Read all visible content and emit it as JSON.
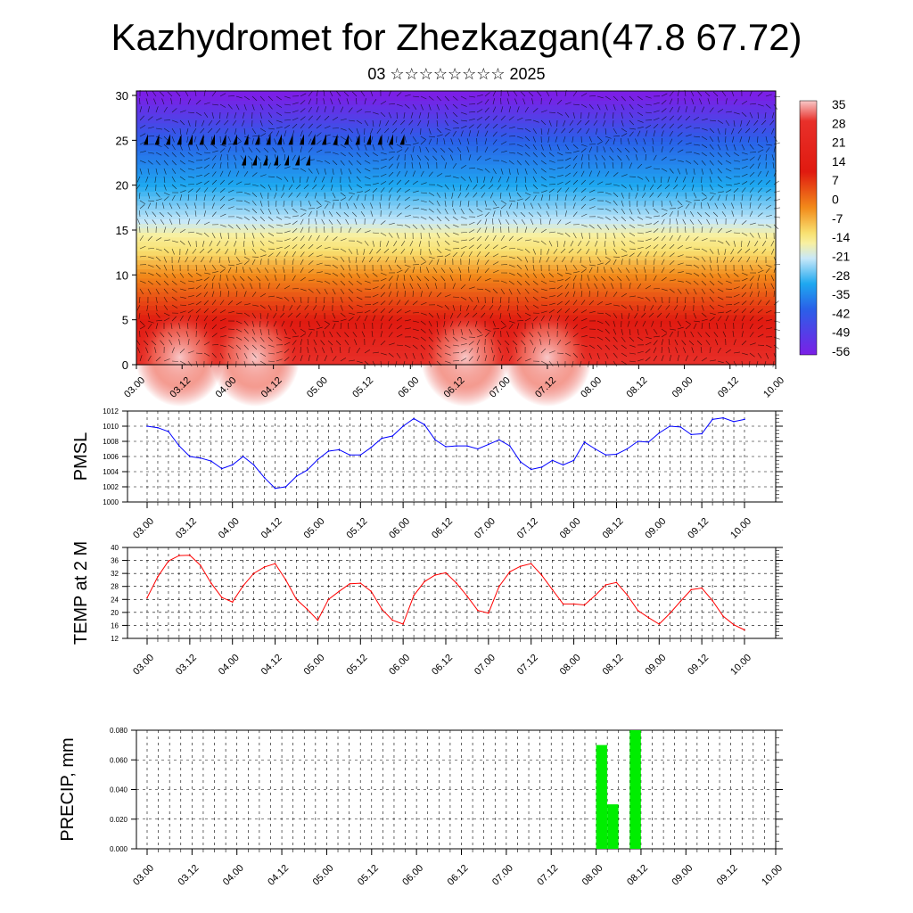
{
  "title": "Kazhydromet for Zhezkazgan(47.8 67.72)",
  "subtitle": "03 ☆☆☆☆☆☆☆☆ 2025",
  "time_ticks": [
    "03.00",
    "03.12",
    "04.00",
    "04.12",
    "05.00",
    "05.12",
    "06.00",
    "06.12",
    "07.00",
    "07.12",
    "08.00",
    "08.12",
    "09.00",
    "09.12",
    "10.00"
  ],
  "chart_data": [
    {
      "type": "heatmap",
      "name": "vertical-section",
      "y_ticks": [
        0,
        5,
        10,
        15,
        20,
        25,
        30
      ],
      "ylim": [
        0,
        30.5
      ],
      "colorbar_labels": [
        "35",
        "28",
        "21",
        "14",
        "7",
        "0",
        "-7",
        "-14",
        "-21",
        "-28",
        "-35",
        "-42",
        "-49",
        "-56"
      ],
      "colors": {
        "cold": "#7b1fe6",
        "cool": "#1ea8f0",
        "mild": "#f8f0a0",
        "warm": "#f4a020",
        "hot": "#e01a10",
        "peak": "#f8c8c8"
      },
      "temperature_levels_km": [
        {
          "height": 0,
          "temp": 28
        },
        {
          "height": 5,
          "temp": 21
        },
        {
          "height": 10,
          "temp": 10
        },
        {
          "height": 14,
          "temp": -5
        },
        {
          "height": 16,
          "temp": -14
        },
        {
          "height": 20,
          "temp": -28
        },
        {
          "height": 25,
          "temp": -42
        },
        {
          "height": 30,
          "temp": -56
        }
      ]
    },
    {
      "type": "line",
      "name": "PMSL",
      "ylabel": "PMSL",
      "ylim": [
        1000,
        1012
      ],
      "y_ticks": [
        1000,
        1002,
        1004,
        1006,
        1008,
        1010,
        1012
      ],
      "color": "#0000ff",
      "x_step_hours": 3,
      "values": [
        1010,
        1009.8,
        1009.3,
        1007.4,
        1006,
        1005.8,
        1005.4,
        1004.4,
        1004.9,
        1006,
        1004.9,
        1003.2,
        1001.8,
        1002,
        1003.4,
        1004.2,
        1005.6,
        1006.7,
        1006.9,
        1006.2,
        1006.2,
        1007.2,
        1008.4,
        1008.7,
        1010,
        1011,
        1010.2,
        1008.2,
        1007.3,
        1007.4,
        1007.4,
        1007,
        1007.6,
        1008.2,
        1007.4,
        1005.3,
        1004.3,
        1004.6,
        1005.5,
        1004.9,
        1005.5,
        1007.9,
        1007,
        1006.2,
        1006.3,
        1007,
        1008,
        1007.9,
        1009.1,
        1010,
        1009.9,
        1008.9,
        1009,
        1010.9,
        1011.1,
        1010.6,
        1010.9
      ]
    },
    {
      "type": "line",
      "name": "TEMP at 2 M",
      "ylabel": "TEMP at 2 M",
      "ylim": [
        12,
        40
      ],
      "y_ticks": [
        12,
        16,
        20,
        24,
        28,
        32,
        36,
        40
      ],
      "color": "#ff0000",
      "x_step_hours": 3,
      "values": [
        24.5,
        31,
        35.8,
        37.5,
        37.6,
        34.5,
        29,
        24.6,
        23.2,
        28.2,
        32,
        34,
        35,
        30,
        24,
        21,
        17.6,
        24,
        26.5,
        28.8,
        29,
        26.5,
        21,
        17.6,
        16.4,
        25.2,
        29.5,
        31.5,
        32.2,
        29,
        25,
        20.6,
        19.8,
        28,
        32.5,
        34.2,
        35,
        31.4,
        27,
        22.6,
        22.6,
        22.3,
        25.2,
        28.5,
        29.2,
        25.4,
        20.6,
        18.4,
        16.4,
        19.7,
        23.4,
        27,
        27.5,
        23.6,
        18.8,
        16.2,
        14.6
      ]
    },
    {
      "type": "bar",
      "name": "PRECIP",
      "ylabel": "PRECIP, mm",
      "ylim": [
        0,
        0.08
      ],
      "y_ticks": [
        "0.000",
        "0.020",
        "0.040",
        "0.060",
        "0.080"
      ],
      "color": "#00ee00",
      "x_step_hours": 3,
      "bars": [
        {
          "time_step": 40,
          "value": 0.07
        },
        {
          "time_step": 41,
          "value": 0.03
        },
        {
          "time_step": 43,
          "value": 0.08
        }
      ]
    }
  ]
}
